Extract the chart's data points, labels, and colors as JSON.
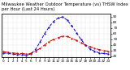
{
  "title": "Milwaukee Weather Outdoor Temperature (vs) THSW Index per Hour (Last 24 Hours)",
  "hours": [
    0,
    1,
    2,
    3,
    4,
    5,
    6,
    7,
    8,
    9,
    10,
    11,
    12,
    13,
    14,
    15,
    16,
    17,
    18,
    19,
    20,
    21,
    22,
    23
  ],
  "temp": [
    28,
    27,
    26,
    25,
    25,
    24,
    25,
    29,
    34,
    40,
    46,
    50,
    53,
    56,
    55,
    52,
    48,
    44,
    40,
    37,
    34,
    32,
    30,
    29
  ],
  "thsw": [
    26,
    25,
    24,
    23,
    23,
    22,
    24,
    32,
    45,
    60,
    72,
    82,
    88,
    90,
    84,
    74,
    62,
    50,
    40,
    33,
    29,
    26,
    25,
    24
  ],
  "temp_color": "#cc0000",
  "thsw_color": "#0000cc",
  "background_color": "#ffffff",
  "grid_color": "#888888",
  "ylim": [
    18,
    95
  ],
  "yticks_right": [
    20,
    30,
    40,
    50,
    60,
    70,
    80,
    90
  ],
  "title_fontsize": 3.8,
  "tick_fontsize": 3.0,
  "linewidth": 0.7,
  "markersize": 1.2
}
